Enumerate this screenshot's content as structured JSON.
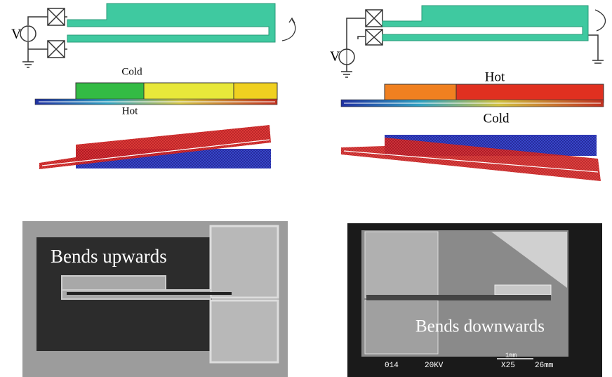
{
  "left_panel": {
    "source_label": "V",
    "top_label": "Cold",
    "bottom_label": "Hot",
    "photo_caption": "Bends upwards"
  },
  "right_panel": {
    "source_label": "V",
    "top_label": "Hot",
    "bottom_label": "Cold",
    "photo_caption": "Bends downwards",
    "sem_labels": {
      "code": "014",
      "voltage": "20KV",
      "scale": "1mm",
      "magnification": "X25",
      "distance": "26mm"
    }
  }
}
